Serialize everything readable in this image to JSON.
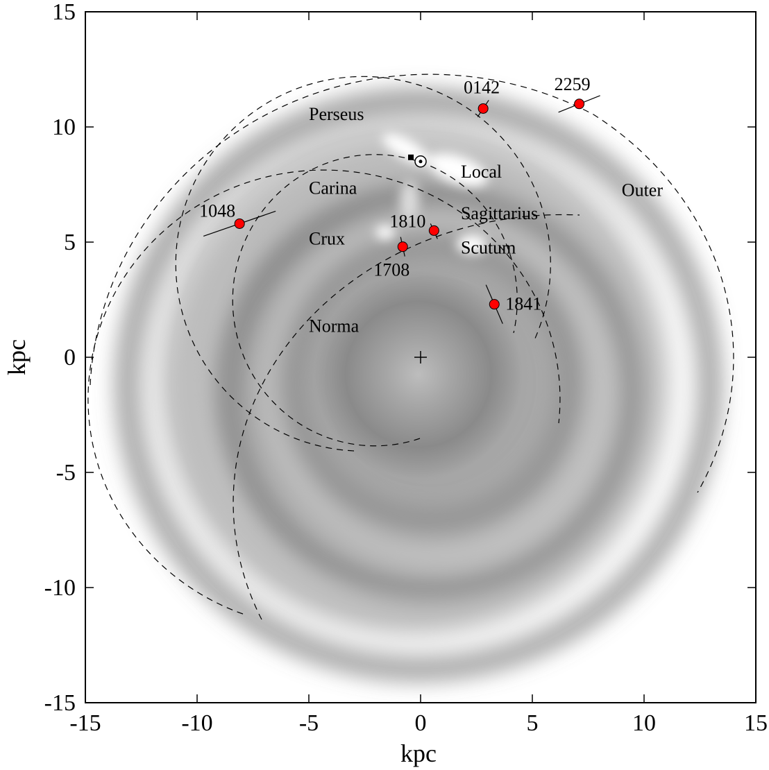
{
  "chart_data": {
    "type": "scatter",
    "title": "",
    "xlabel": "kpc",
    "ylabel": "kpc",
    "xlim": [
      -15,
      15
    ],
    "ylim": [
      -15,
      15
    ],
    "xticks": [
      -15,
      -10,
      -5,
      0,
      5,
      10,
      15
    ],
    "yticks": [
      -15,
      -10,
      -5,
      0,
      5,
      10,
      15
    ],
    "grid": false,
    "background": "grayscale spiral-arm density map of the Milky Way",
    "arms": [
      {
        "name": "Perseus",
        "label_x": -5.0,
        "label_y": 10.3
      },
      {
        "name": "Local",
        "label_x": 1.8,
        "label_y": 7.8
      },
      {
        "name": "Carina",
        "label_x": -5.0,
        "label_y": 7.1
      },
      {
        "name": "Sagittarius",
        "label_x": 1.8,
        "label_y": 6.0
      },
      {
        "name": "Outer",
        "label_x": 9.0,
        "label_y": 7.0
      },
      {
        "name": "Crux",
        "label_x": -5.0,
        "label_y": 4.9
      },
      {
        "name": "Scutum",
        "label_x": 1.8,
        "label_y": 4.5
      },
      {
        "name": "Norma",
        "label_x": -5.0,
        "label_y": 1.1
      }
    ],
    "points": [
      {
        "label": "0142",
        "x": 2.8,
        "y": 10.8
      },
      {
        "label": "2259",
        "x": 7.1,
        "y": 11.0
      },
      {
        "label": "1048",
        "x": -8.1,
        "y": 5.8
      },
      {
        "label": "1810",
        "x": 0.6,
        "y": 5.5
      },
      {
        "label": "1708",
        "x": -0.8,
        "y": 4.8
      },
      {
        "label": "1841",
        "x": 3.3,
        "y": 2.3
      }
    ],
    "markers": [
      {
        "name": "sun",
        "symbol": "⊙",
        "x": 0.0,
        "y": 8.5
      },
      {
        "name": "galactic-center",
        "symbol": "+",
        "x": 0.0,
        "y": 0.0
      }
    ]
  },
  "colors": {
    "point_fill": "#ff0000",
    "point_stroke": "#000000",
    "frame": "#000000"
  }
}
